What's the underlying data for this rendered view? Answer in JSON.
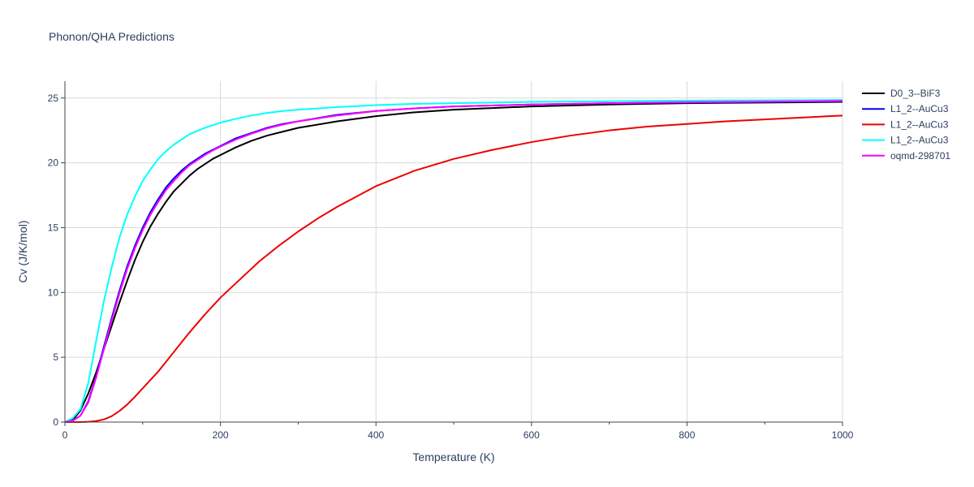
{
  "chart_data": {
    "type": "line",
    "title": "Phonon/QHA Predictions",
    "xlabel": "Temperature (K)",
    "ylabel": "Cv (J/K/mol)",
    "xlim": [
      0,
      1000
    ],
    "ylim": [
      0,
      26.3
    ],
    "xticks": [
      0,
      200,
      400,
      600,
      800,
      1000
    ],
    "yticks": [
      0,
      5,
      10,
      15,
      20,
      25
    ],
    "grid": true,
    "legend_position": "right",
    "series": [
      {
        "name": "D0_3--BiF3",
        "color": "#000000",
        "x": [
          0,
          10,
          20,
          30,
          40,
          50,
          60,
          70,
          80,
          90,
          100,
          110,
          120,
          130,
          140,
          150,
          160,
          170,
          180,
          190,
          200,
          220,
          240,
          260,
          280,
          300,
          350,
          400,
          450,
          500,
          600,
          700,
          800,
          900,
          1000
        ],
        "y": [
          0,
          0.15,
          0.9,
          2.2,
          3.8,
          5.6,
          7.4,
          9.2,
          10.9,
          12.5,
          13.9,
          15.1,
          16.1,
          17.0,
          17.8,
          18.4,
          19.0,
          19.5,
          19.9,
          20.3,
          20.6,
          21.2,
          21.7,
          22.1,
          22.4,
          22.7,
          23.2,
          23.6,
          23.9,
          24.1,
          24.35,
          24.5,
          24.6,
          24.65,
          24.7
        ]
      },
      {
        "name": "L1_2--AuCu3",
        "color": "#0000ee",
        "x": [
          0,
          10,
          20,
          30,
          40,
          50,
          60,
          70,
          80,
          90,
          100,
          110,
          120,
          130,
          140,
          150,
          160,
          170,
          180,
          190,
          200,
          220,
          240,
          260,
          280,
          300,
          350,
          400,
          450,
          500,
          600,
          700,
          800,
          900,
          1000
        ],
        "y": [
          0,
          0.1,
          0.5,
          1.6,
          3.5,
          5.8,
          8.0,
          10.1,
          12.0,
          13.6,
          15.0,
          16.2,
          17.2,
          18.1,
          18.8,
          19.4,
          19.9,
          20.3,
          20.7,
          21.0,
          21.3,
          21.9,
          22.3,
          22.7,
          23.0,
          23.2,
          23.7,
          24.0,
          24.2,
          24.35,
          24.5,
          24.6,
          24.65,
          24.7,
          24.75
        ]
      },
      {
        "name": "L1_2--AuCu3",
        "color": "#ee0000",
        "x": [
          0,
          20,
          30,
          40,
          50,
          60,
          70,
          80,
          90,
          100,
          120,
          140,
          160,
          180,
          200,
          225,
          250,
          275,
          300,
          325,
          350,
          400,
          450,
          500,
          550,
          600,
          650,
          700,
          750,
          800,
          850,
          900,
          950,
          1000
        ],
        "y": [
          0,
          0,
          0.02,
          0.08,
          0.2,
          0.45,
          0.85,
          1.35,
          1.95,
          2.6,
          3.9,
          5.4,
          6.9,
          8.3,
          9.6,
          11.0,
          12.4,
          13.6,
          14.7,
          15.7,
          16.6,
          18.2,
          19.4,
          20.3,
          21.0,
          21.6,
          22.1,
          22.5,
          22.8,
          23.0,
          23.2,
          23.35,
          23.5,
          23.65
        ]
      },
      {
        "name": "L1_2--AuCu3",
        "color": "#00ffff",
        "x": [
          0,
          10,
          20,
          30,
          40,
          50,
          60,
          70,
          80,
          90,
          100,
          110,
          120,
          130,
          140,
          150,
          160,
          170,
          180,
          190,
          200,
          220,
          240,
          260,
          280,
          300,
          350,
          400,
          450,
          500,
          600,
          700,
          800,
          900,
          1000
        ],
        "y": [
          0,
          0.3,
          1.0,
          3.0,
          6.2,
          9.3,
          11.9,
          14.2,
          16.0,
          17.4,
          18.6,
          19.5,
          20.3,
          20.9,
          21.4,
          21.8,
          22.2,
          22.45,
          22.7,
          22.9,
          23.1,
          23.4,
          23.65,
          23.85,
          24.0,
          24.1,
          24.3,
          24.45,
          24.55,
          24.6,
          24.7,
          24.75,
          24.8,
          24.82,
          24.85
        ]
      },
      {
        "name": "oqmd-298701",
        "color": "#ff00ff",
        "x": [
          0,
          10,
          20,
          30,
          40,
          50,
          60,
          70,
          80,
          90,
          100,
          110,
          120,
          130,
          140,
          150,
          160,
          170,
          180,
          190,
          200,
          220,
          240,
          260,
          280,
          300,
          350,
          400,
          450,
          500,
          600,
          700,
          800,
          900,
          1000
        ],
        "y": [
          0,
          0.1,
          0.5,
          1.5,
          3.4,
          5.6,
          7.8,
          9.9,
          11.8,
          13.4,
          14.8,
          16.0,
          17.0,
          17.9,
          18.6,
          19.25,
          19.8,
          20.2,
          20.6,
          20.95,
          21.25,
          21.8,
          22.25,
          22.65,
          22.95,
          23.2,
          23.65,
          24.0,
          24.2,
          24.35,
          24.5,
          24.6,
          24.68,
          24.72,
          24.78
        ]
      }
    ]
  }
}
